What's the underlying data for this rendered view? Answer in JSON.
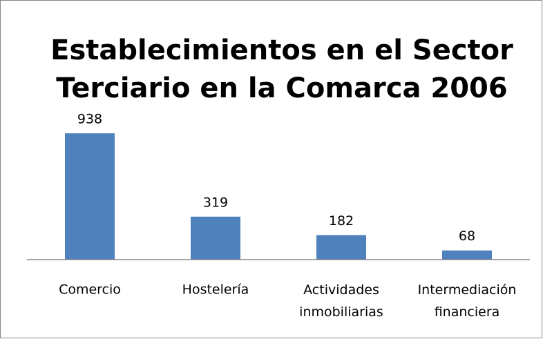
{
  "chart_data": {
    "type": "bar",
    "title": [
      "Establecimientos en el Sector",
      "Terciario en la Comarca 2006"
    ],
    "categories": [
      "Comercio",
      "Hostelería",
      "Actividades inmobiliarias",
      "Intermediación financiera"
    ],
    "values": [
      938,
      319,
      182,
      68
    ],
    "color": "#4f81bd"
  }
}
